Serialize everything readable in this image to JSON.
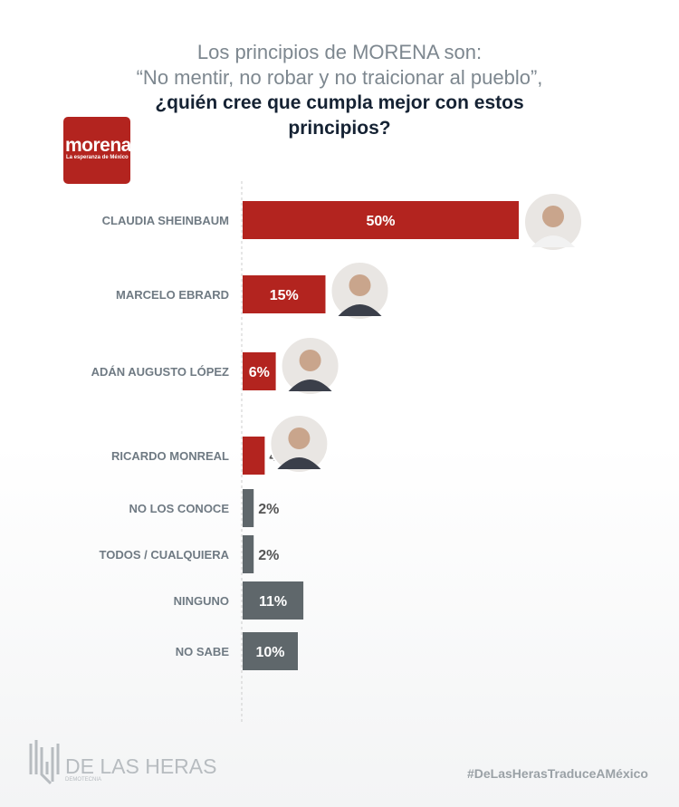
{
  "chart_data": {
    "type": "bar",
    "orientation": "horizontal",
    "title_line1": "Los principios de MORENA son:",
    "title_line2": "“No mentir, no robar y no traicionar al pueblo”,",
    "question": "¿quién cree que cumpla mejor con estos principios?",
    "categories": [
      "CLAUDIA SHEINBAUM",
      "MARCELO EBRARD",
      "ADÁN AUGUSTO LÓPEZ",
      "RICARDO MONREAL",
      "NO LOS CONOCE",
      "TODOS / CUALQUIERA",
      "NINGUNO",
      "NO SABE"
    ],
    "values": [
      50,
      15,
      6,
      4,
      2,
      2,
      11,
      10
    ],
    "data_labels": [
      "50%",
      "15%",
      "6%",
      "4%",
      "2%",
      "2%",
      "11%",
      "10%"
    ],
    "bar_colors": [
      "#b3241f",
      "#b3241f",
      "#b3241f",
      "#b3241f",
      "#5f676b",
      "#5f676b",
      "#5f676b",
      "#5f676b"
    ],
    "has_photo": [
      true,
      true,
      true,
      true,
      false,
      false,
      false,
      false
    ],
    "unit": "%",
    "grid": false
  },
  "logo": {
    "name": "morena",
    "tagline": "La esperanza de México"
  },
  "footer": {
    "brand": "DE LAS HERAS",
    "brand_sub": "DEMOTECNIA",
    "hashtag": "#DeLasHerasTraduceAMéxico"
  }
}
